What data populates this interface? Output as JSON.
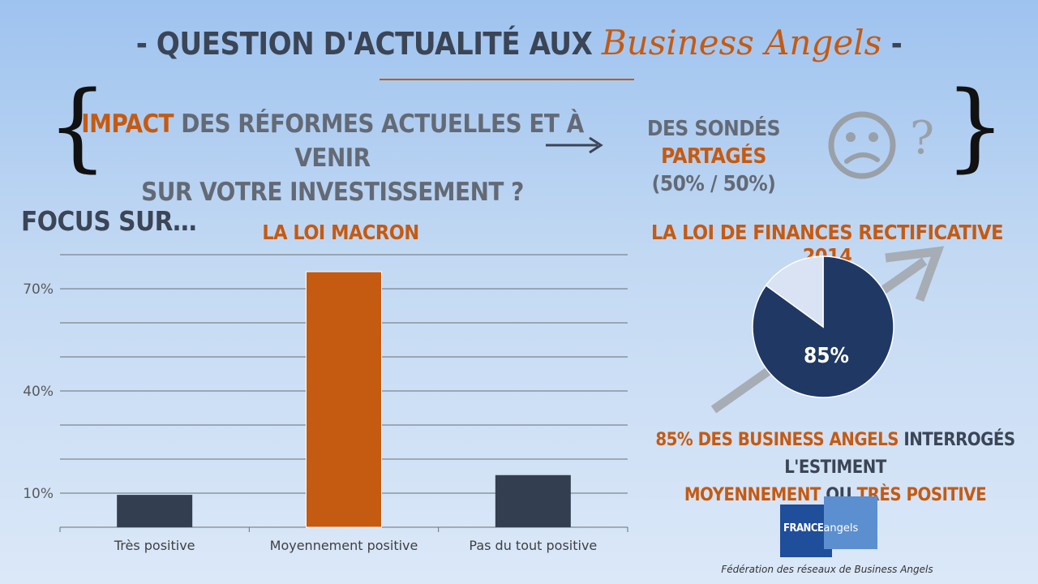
{
  "header": {
    "title_prefix": "- QUESTION D'ACTUALITÉ AUX",
    "title_highlight": "Business Angels",
    "title_suffix": "-"
  },
  "question": {
    "highlight": "IMPACT",
    "line1_rest": "DES RÉFORMES ACTUELLES ET À VENIR",
    "line2": "SUR VOTRE INVESTISSEMENT ?"
  },
  "answer": {
    "prefix": "DES SONDÉS",
    "highlight": "PARTAGÉS",
    "split": "(50% / 50%)"
  },
  "icons": {
    "sad": "sad-face-icon",
    "question": "question-mark-icon",
    "question_glyph": "?",
    "arrow": "right-arrow-icon",
    "trend": "trend-arrow-icon"
  },
  "focus_label": "FOCUS SUR…",
  "chart_data": [
    {
      "type": "bar",
      "title": "LA LOI MACRON",
      "categories": [
        "Très positive",
        "Moyennement positive",
        "Pas du tout positive"
      ],
      "values": [
        9.5,
        75,
        15.3
      ],
      "ytick_labels": [
        "10%",
        "40%",
        "70%"
      ],
      "yticks": [
        10,
        40,
        70
      ],
      "ylim": [
        0,
        80
      ],
      "grid": true,
      "colors": [
        "#333f50",
        "#c55a11",
        "#333f50"
      ]
    },
    {
      "type": "pie",
      "title": "LA LOI DE FINANCES RECTIFICATIVE 2014",
      "values": [
        85,
        15
      ],
      "center_label": "85%",
      "colors": [
        "#203864",
        "#dae3f3"
      ]
    }
  ],
  "caption": {
    "part1": "85% DES BUSINESS ANGELS",
    "part2": "INTERROGÉS L'ESTIMENT",
    "part3": "MOYENNEMENT",
    "part4": "OU",
    "part5": "TRÈS POSITIVE"
  },
  "logo": {
    "france": "France",
    "angels": "angels"
  },
  "footer": "Fédération des réseaux de Business Angels"
}
